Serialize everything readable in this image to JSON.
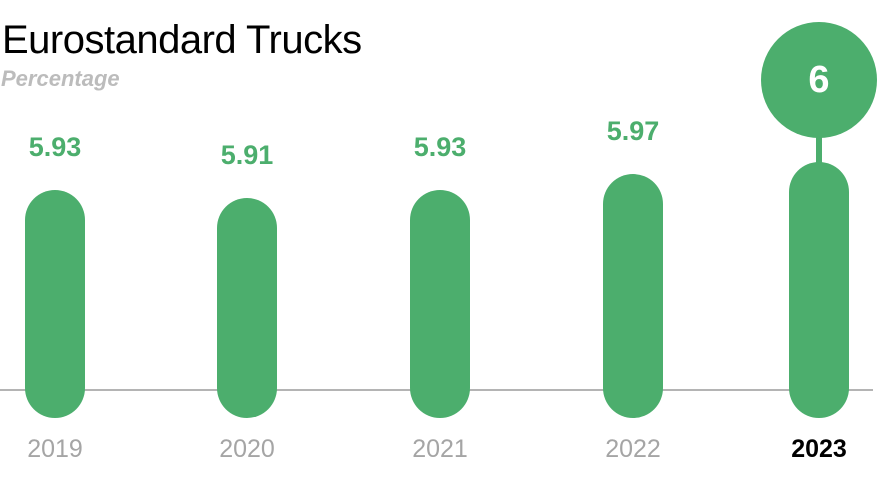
{
  "title": "Eurostandard Trucks",
  "subtitle": "Percentage",
  "colors": {
    "bar": "#4cae6d",
    "value_label": "#4cae6d",
    "title_text": "#000000",
    "subtitle_text": "#bcbcbc",
    "axis_line": "#b4b4b4",
    "year_label": "#a5a5a5",
    "year_label_current": "#000000",
    "bubble_fill": "#4cae6d",
    "bubble_text": "#ffffff",
    "background": "#ffffff"
  },
  "chart_data": {
    "type": "bar",
    "title": "Eurostandard Trucks",
    "ylabel": "Percentage",
    "xlabel": "",
    "categories": [
      "2019",
      "2020",
      "2021",
      "2022",
      "2023"
    ],
    "values": [
      5.93,
      5.91,
      5.93,
      5.97,
      6
    ],
    "value_labels": [
      "5.93",
      "5.91",
      "5.93",
      "5.97",
      "6"
    ],
    "series": [
      {
        "name": "Eurostandard Trucks",
        "values": [
          5.93,
          5.91,
          5.93,
          5.97,
          6
        ]
      }
    ],
    "highlight_index": 4,
    "highlight_style": "circle-bubble-above-bar",
    "bars_rounded": true,
    "grid": false,
    "y_axis_ticks_visible": false,
    "x_baseline_visible": true,
    "legend_position": "none",
    "ylim_estimate": [
      5.36,
      6.2
    ]
  }
}
